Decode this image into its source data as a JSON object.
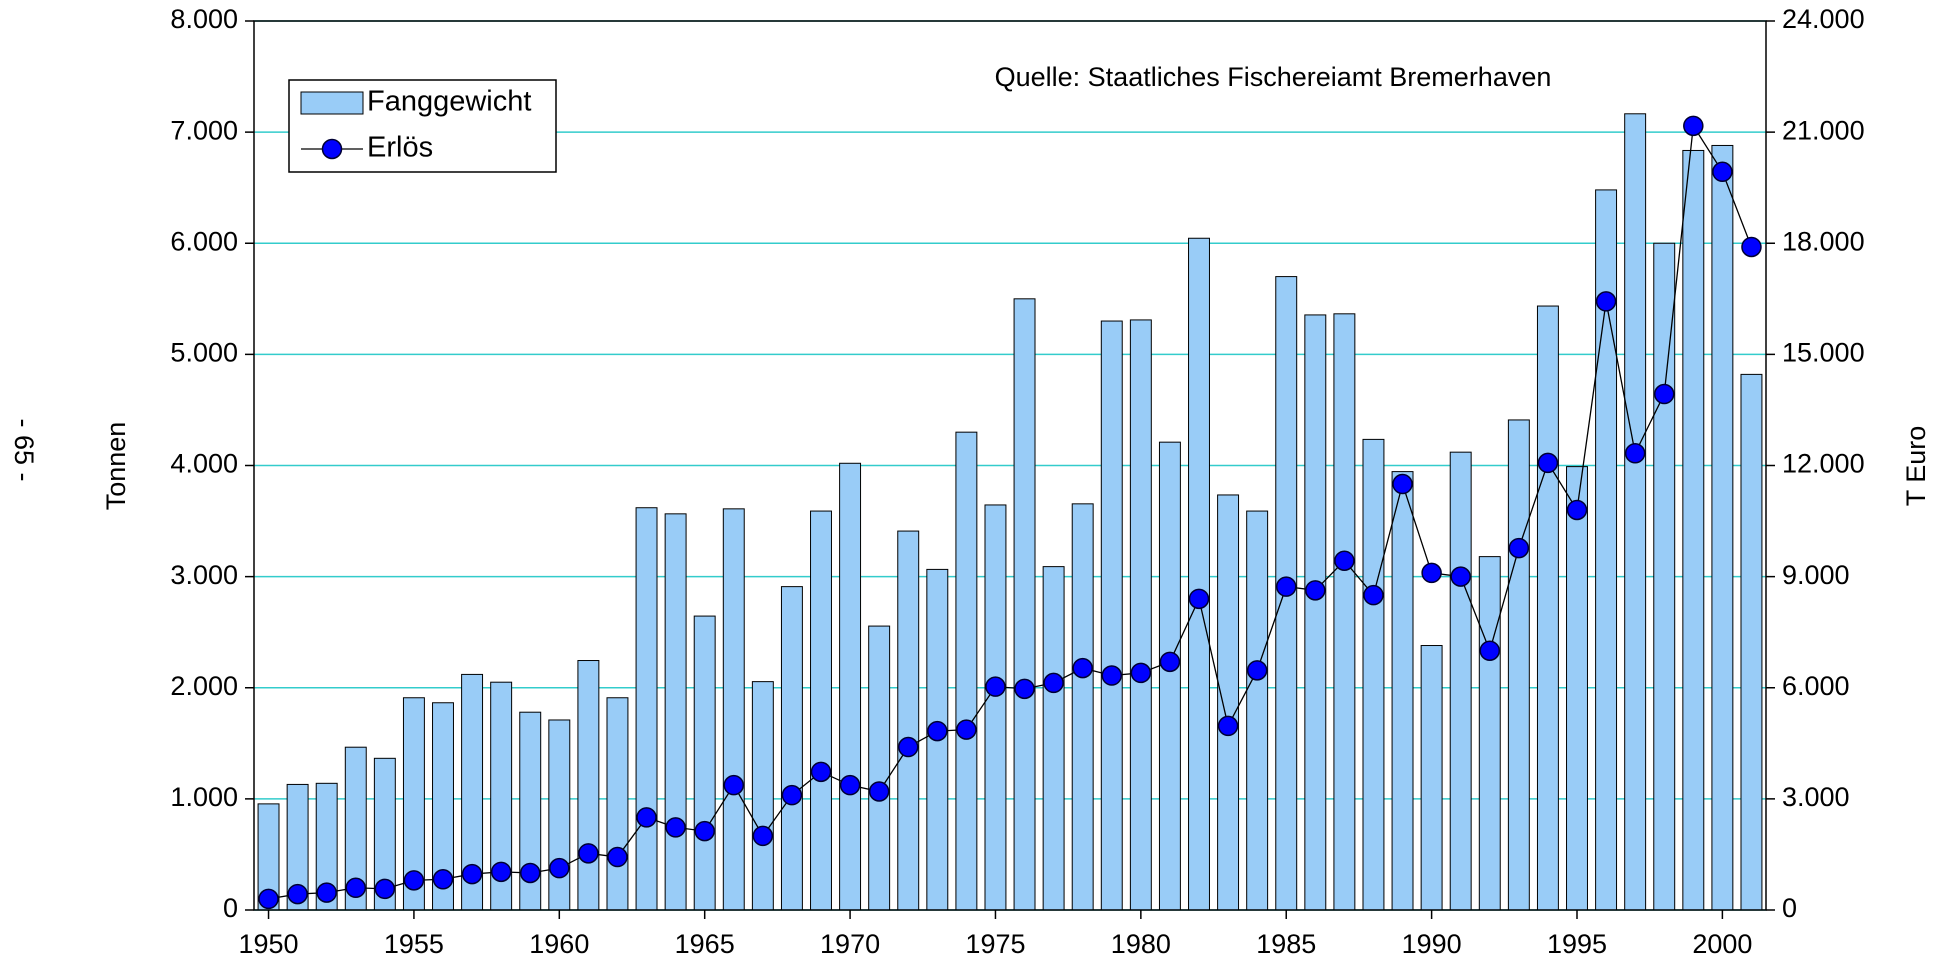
{
  "chart_data": {
    "type": "bar_line",
    "page_label": "- 65 -",
    "annotation": "Quelle: Staatliches Fischereiamt Bremerhaven",
    "ylabel": "Tonnen",
    "y2label": "T Euro",
    "x": [
      1950,
      1951,
      1952,
      1953,
      1954,
      1955,
      1956,
      1957,
      1958,
      1959,
      1960,
      1961,
      1962,
      1963,
      1964,
      1965,
      1966,
      1967,
      1968,
      1969,
      1970,
      1971,
      1972,
      1973,
      1974,
      1975,
      1976,
      1977,
      1978,
      1979,
      1980,
      1981,
      1982,
      1983,
      1984,
      1985,
      1986,
      1987,
      1988,
      1989,
      1990,
      1991,
      1992,
      1993,
      1994,
      1995,
      1996,
      1997,
      1998,
      1999,
      2000,
      2001
    ],
    "xlim": [
      1949.5,
      2001.5
    ],
    "xticks": [
      1950,
      1955,
      1960,
      1965,
      1970,
      1975,
      1980,
      1985,
      1990,
      1995,
      2000
    ],
    "ylim": [
      0,
      8000
    ],
    "yticks": [
      0,
      {
        "value": 1000,
        "label": "1.000"
      },
      {
        "value": 2000,
        "label": "2.000"
      },
      {
        "value": 3000,
        "label": "3.000"
      },
      {
        "value": 4000,
        "label": "4.000"
      },
      {
        "value": 5000,
        "label": "5.000"
      },
      {
        "value": 6000,
        "label": "6.000"
      },
      {
        "value": 7000,
        "label": "7.000"
      },
      {
        "value": 8000,
        "label": "8.000"
      }
    ],
    "y2lim": [
      0,
      24000
    ],
    "y2ticks": [
      0,
      {
        "value": 3000,
        "label": "3.000"
      },
      {
        "value": 6000,
        "label": "6.000"
      },
      {
        "value": 9000,
        "label": "9.000"
      },
      {
        "value": 12000,
        "label": "12.000"
      },
      {
        "value": 15000,
        "label": "15.000"
      },
      {
        "value": 18000,
        "label": "18.000"
      },
      {
        "value": 21000,
        "label": "21.000"
      },
      {
        "value": 24000,
        "label": "24.000"
      }
    ],
    "grid": true,
    "grid_color": "#33cccc",
    "legend": "upper left",
    "series": [
      {
        "name": "Fanggewicht",
        "type": "bar",
        "color": "#99ccf7",
        "values": [
          955,
          1130,
          1140,
          1465,
          1365,
          1910,
          1865,
          2120,
          2050,
          1780,
          1710,
          2245,
          1910,
          3620,
          3565,
          2645,
          3610,
          2055,
          2910,
          3590,
          4020,
          2555,
          3410,
          3065,
          4300,
          3645,
          5500,
          3090,
          3655,
          5300,
          5310,
          4210,
          6045,
          3735,
          3590,
          5700,
          5355,
          5365,
          4235,
          3945,
          2380,
          4120,
          3180,
          4410,
          5435,
          3990,
          6480,
          7165,
          6000,
          6835,
          6880,
          4820
        ]
      },
      {
        "name": "Erlös",
        "type": "line",
        "axis": "y2",
        "color": "#0000ff",
        "values": [
          300,
          430,
          470,
          600,
          570,
          800,
          830,
          970,
          1030,
          1000,
          1130,
          1530,
          1430,
          2500,
          2230,
          2130,
          3370,
          2000,
          3100,
          3730,
          3370,
          3200,
          4400,
          4830,
          4870,
          6030,
          5970,
          6130,
          6530,
          6330,
          6400,
          6700,
          8400,
          4970,
          6470,
          8730,
          8630,
          9430,
          8500,
          11500,
          9100,
          9000,
          7000,
          9770,
          12070,
          10800,
          16430,
          12330,
          13930,
          21170,
          19930,
          17900
        ]
      }
    ]
  }
}
